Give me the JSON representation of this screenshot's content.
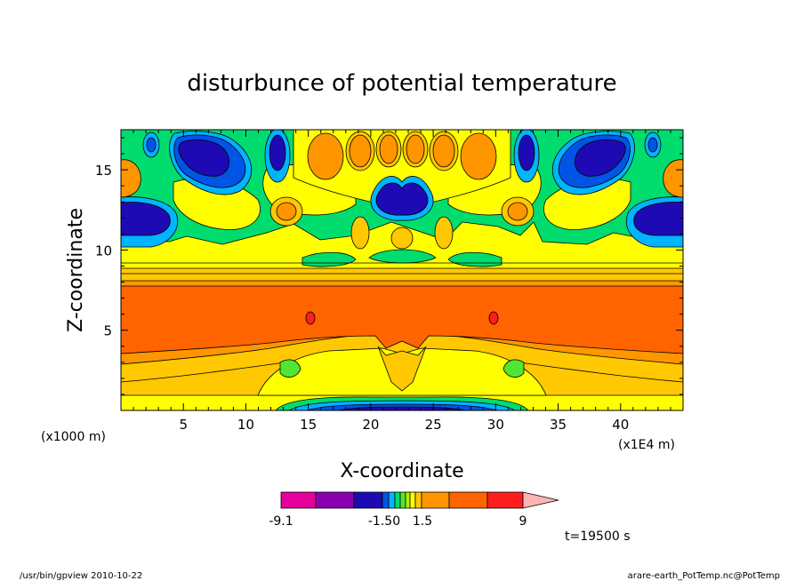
{
  "chart_data": {
    "type": "heatmap",
    "title": "disturbunce of potential temperature",
    "xlabel": "X-coordinate",
    "ylabel": "Z-coordinate",
    "x_unit": "(x1E4 m)",
    "y_unit": "(x1000 m)",
    "xlim": [
      0,
      45
    ],
    "ylim": [
      0,
      17.5
    ],
    "x_ticks": [
      5,
      10,
      15,
      20,
      25,
      30,
      35,
      40
    ],
    "y_ticks": [
      5,
      10,
      15
    ],
    "colorbar": {
      "colors": [
        "#e6009c",
        "#8a00b0",
        "#1e0ab4",
        "#0055e6",
        "#00b4ff",
        "#00dc6e",
        "#50e632",
        "#b4f000",
        "#ffff00",
        "#ffc800",
        "#ff9600",
        "#ff6400",
        "#ff1e1e",
        "#ff7878",
        "#ffb4b4"
      ],
      "labels": [
        "-9.1",
        "-1.50",
        "1.5",
        "9"
      ]
    },
    "time_label": "t=19500 s",
    "footer_left": "/usr/bin/gpview   2010-10-22",
    "footer_right": "arare-earth_PotTemp.nc@PotTemp",
    "colors": {
      "dark_blue": "#1e0ab4",
      "blue": "#0055e6",
      "cyan": "#00b4ff",
      "green": "#00dc6e",
      "light_green": "#50e632",
      "yellow": "#ffff00",
      "light_orange": "#ffc800",
      "orange": "#ff9600",
      "red_orange": "#ff6400",
      "red": "#ff1e1e"
    }
  }
}
